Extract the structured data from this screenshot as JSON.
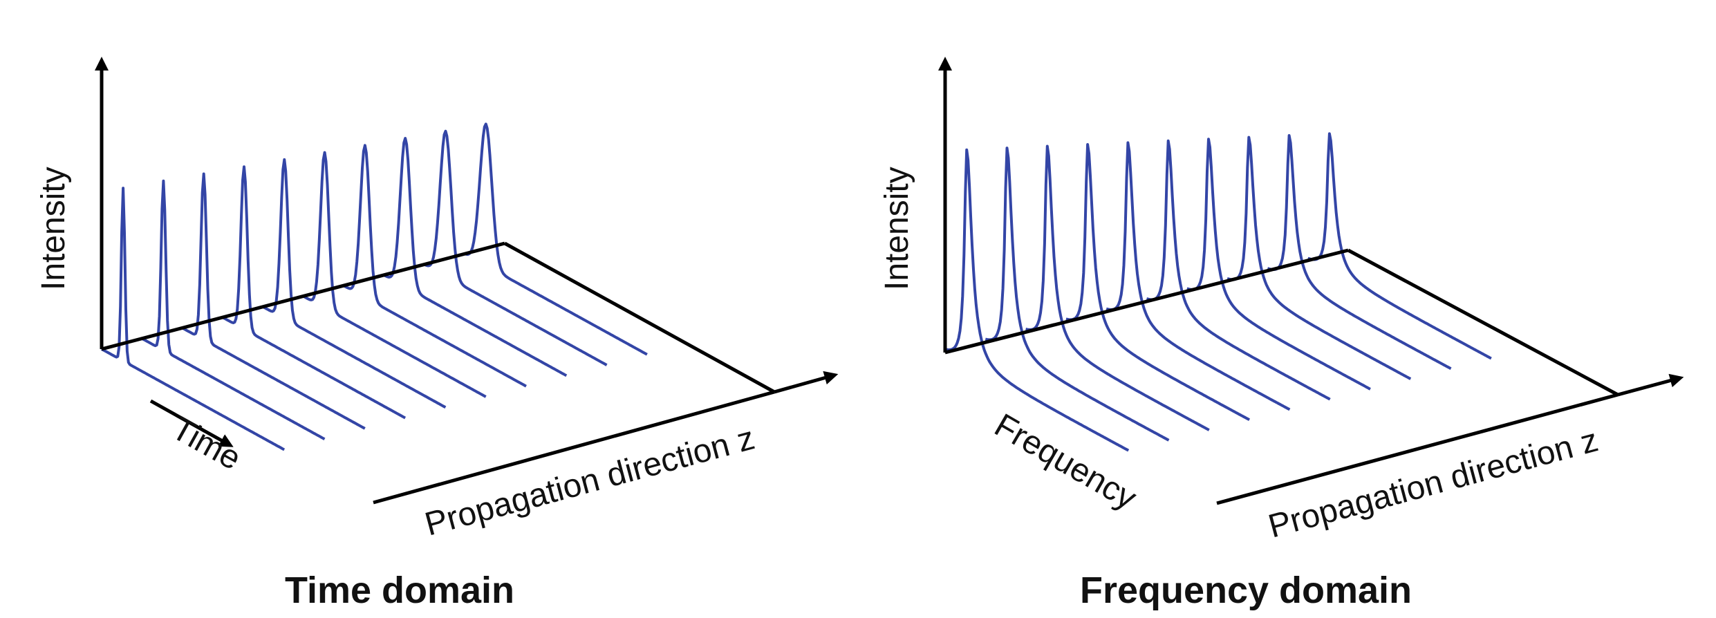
{
  "colors": {
    "curve": "#3345a6",
    "axis": "#000000",
    "background": "#ffffff"
  },
  "panels": [
    {
      "id": "time",
      "caption": "Time domain",
      "y_axis_label": "Intensity",
      "depth_axis_label": "Time",
      "z_axis_label": "Propagation direction z",
      "pulse_count": 10,
      "shape": "broadening"
    },
    {
      "id": "frequency",
      "caption": "Frequency domain",
      "y_axis_label": "Intensity",
      "depth_axis_label": "Frequency",
      "z_axis_label": "Propagation direction z",
      "pulse_count": 10,
      "shape": "constant"
    }
  ]
}
